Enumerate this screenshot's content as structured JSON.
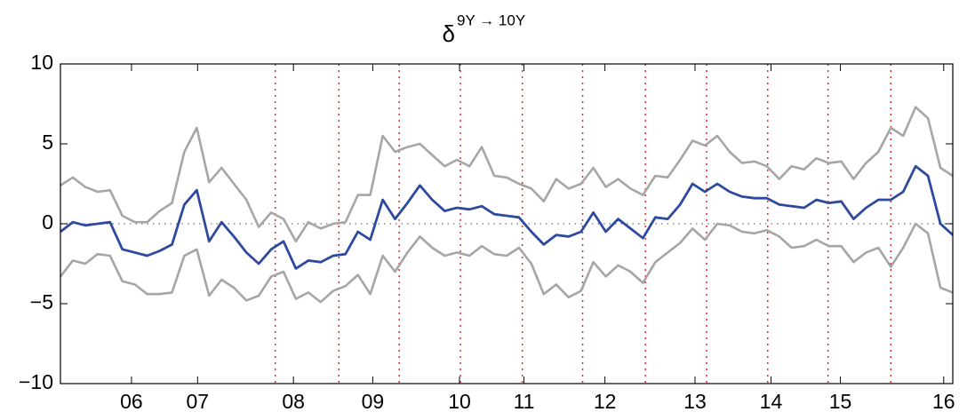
{
  "chart_data": {
    "type": "line",
    "title": "δ",
    "title_superscript": "9Y → 10Y",
    "x": [
      2005.2,
      2005.35,
      2005.5,
      2005.65,
      2005.8,
      2005.95,
      2006.1,
      2006.25,
      2006.4,
      2006.55,
      2006.7,
      2006.85,
      2007.0,
      2007.15,
      2007.3,
      2007.45,
      2007.6,
      2007.75,
      2007.9,
      2008.05,
      2008.2,
      2008.35,
      2008.5,
      2008.65,
      2008.8,
      2008.95,
      2009.1,
      2009.25,
      2009.4,
      2009.55,
      2009.7,
      2009.85,
      2010.0,
      2010.15,
      2010.3,
      2010.45,
      2010.6,
      2010.75,
      2010.9,
      2011.05,
      2011.2,
      2011.35,
      2011.5,
      2011.65,
      2011.8,
      2011.95,
      2012.1,
      2012.25,
      2012.4,
      2012.55,
      2012.7,
      2012.85,
      2013.0,
      2013.15,
      2013.3,
      2013.45,
      2013.6,
      2013.75,
      2013.9,
      2014.05,
      2014.2,
      2014.35,
      2014.5,
      2014.65,
      2014.8,
      2014.95,
      2015.1,
      2015.25,
      2015.4,
      2015.55,
      2015.7,
      2015.85,
      2016.0
    ],
    "series": [
      {
        "color": "#a6a6a6",
        "values": [
          2.4,
          2.9,
          2.3,
          2.0,
          2.1,
          0.5,
          0.1,
          0.1,
          0.8,
          1.3,
          4.5,
          6.0,
          2.6,
          3.5,
          2.5,
          1.5,
          -0.2,
          0.7,
          0.3,
          -1.1,
          0.1,
          -0.3,
          0.0,
          0.1,
          1.8,
          1.8,
          5.5,
          4.5,
          4.8,
          5.0,
          4.3,
          3.6,
          4.0,
          3.6,
          4.8,
          3.0,
          2.9,
          2.5,
          2.2,
          1.4,
          2.8,
          2.2,
          2.5,
          3.5,
          2.3,
          2.8,
          2.2,
          1.8,
          3.0,
          2.9,
          4.0,
          5.2,
          4.9,
          5.5,
          4.5,
          3.8,
          3.9,
          3.6,
          2.8,
          3.6,
          3.4,
          4.1,
          3.8,
          3.9,
          2.8,
          3.8,
          4.5,
          6.0,
          5.5,
          7.3,
          6.6,
          3.5,
          3.0
        ]
      },
      {
        "color": "#a6a6a6",
        "values": [
          -3.3,
          -2.3,
          -2.5,
          -1.9,
          -2.0,
          -3.6,
          -3.8,
          -4.4,
          -4.4,
          -4.3,
          -2.0,
          -1.6,
          -4.5,
          -3.5,
          -4.0,
          -4.8,
          -4.5,
          -3.3,
          -3.0,
          -4.7,
          -4.3,
          -4.9,
          -4.2,
          -3.9,
          -3.2,
          -4.4,
          -2.0,
          -3.0,
          -1.8,
          -0.8,
          -1.5,
          -2.0,
          -1.8,
          -2.0,
          -1.4,
          -1.9,
          -2.0,
          -1.5,
          -2.5,
          -4.4,
          -3.8,
          -4.6,
          -4.2,
          -2.4,
          -3.3,
          -2.6,
          -3.0,
          -3.7,
          -2.4,
          -1.8,
          -1.2,
          -0.3,
          -1.0,
          0.0,
          -0.1,
          -0.5,
          -0.6,
          -0.4,
          -0.8,
          -1.5,
          -1.4,
          -1.0,
          -1.4,
          -1.4,
          -2.4,
          -1.8,
          -1.5,
          -2.7,
          -1.5,
          0.0,
          -0.6,
          -4.0,
          -4.3
        ]
      },
      {
        "color": "#2e4a9e",
        "values": [
          -0.5,
          0.1,
          -0.1,
          0.0,
          0.1,
          -1.6,
          -1.8,
          -2.0,
          -1.7,
          -1.3,
          1.2,
          2.1,
          -1.1,
          0.1,
          -0.8,
          -1.8,
          -2.5,
          -1.6,
          -1.1,
          -2.8,
          -2.3,
          -2.4,
          -2.0,
          -1.9,
          -0.5,
          -1.0,
          1.5,
          0.3,
          1.3,
          2.4,
          1.5,
          0.8,
          1.0,
          0.9,
          1.1,
          0.6,
          0.5,
          0.4,
          -0.5,
          -1.3,
          -0.7,
          -0.8,
          -0.5,
          0.7,
          -0.5,
          0.3,
          -0.3,
          -0.9,
          0.4,
          0.3,
          1.2,
          2.5,
          2.0,
          2.5,
          2.0,
          1.7,
          1.6,
          1.6,
          1.2,
          1.1,
          1.0,
          1.5,
          1.3,
          1.4,
          0.3,
          1.0,
          1.5,
          1.5,
          2.0,
          3.6,
          3.0,
          0.0,
          -0.7
        ]
      }
    ],
    "xlim": [
      2005.2,
      2016.0
    ],
    "ylim": [
      -10,
      10
    ],
    "yticks": [
      {
        "value": -10,
        "label": "−10"
      },
      {
        "value": -5,
        "label": "−5"
      },
      0,
      5,
      10
    ],
    "xticks": [
      {
        "value": 2006.06,
        "label": "06"
      },
      {
        "value": 2006.86,
        "label": "07"
      },
      {
        "value": 2008.02,
        "label": "08"
      },
      {
        "value": 2008.98,
        "label": "09"
      },
      {
        "value": 2010.03,
        "label": "10"
      },
      {
        "value": 2010.81,
        "label": "11"
      },
      {
        "value": 2011.79,
        "label": "12"
      },
      {
        "value": 2012.88,
        "label": "13"
      },
      {
        "value": 2013.8,
        "label": "14"
      },
      {
        "value": 2014.64,
        "label": "15"
      },
      {
        "value": 2015.89,
        "label": "16"
      }
    ],
    "reference_line": 0,
    "reference_color": "#888888",
    "vlines": [
      2007.8,
      2008.57,
      2009.3,
      2010.04,
      2010.79,
      2011.52,
      2012.28,
      2013.02,
      2013.76,
      2014.49,
      2015.25
    ],
    "vline_color": "#e8262c"
  }
}
